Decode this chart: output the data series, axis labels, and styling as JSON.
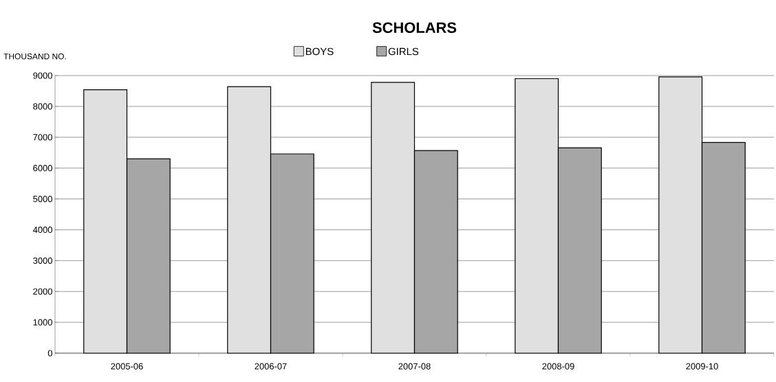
{
  "chart_data": {
    "type": "bar",
    "title": "SCHOLARS",
    "ylabel": "THOUSAND NO.",
    "categories": [
      "2005-06",
      "2006-07",
      "2007-08",
      "2008-09",
      "2009-10"
    ],
    "series": [
      {
        "name": "BOYS",
        "color": "#e0e0e0",
        "values": [
          8540,
          8640,
          8780,
          8900,
          8960
        ]
      },
      {
        "name": "GIRLS",
        "color": "#a6a6a6",
        "values": [
          6300,
          6460,
          6570,
          6660,
          6830
        ]
      }
    ],
    "ylim": [
      0,
      9000
    ],
    "yticks": [
      0,
      1000,
      2000,
      3000,
      4000,
      5000,
      6000,
      7000,
      8000,
      9000
    ],
    "grid": "y",
    "legend": "top"
  }
}
